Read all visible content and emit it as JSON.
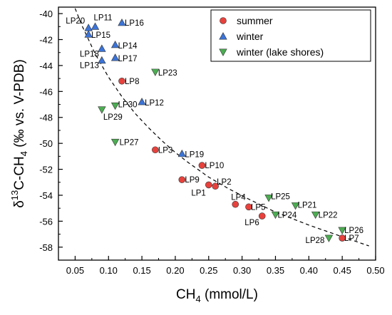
{
  "chart_data": {
    "type": "scatter",
    "title": "",
    "xlabel": "CH",
    "xlabel_sub": "4",
    "xlabel_unit": " (mmol/L)",
    "ylabel_parts": [
      "δ",
      "13",
      "C-CH",
      "4",
      " (‰ vs. V-PDB)"
    ],
    "xlim": [
      0.025,
      0.5
    ],
    "ylim": [
      -59,
      -39.5
    ],
    "xticks": [
      0.05,
      0.1,
      0.15,
      0.2,
      0.25,
      0.3,
      0.35,
      0.4,
      0.45,
      0.5
    ],
    "xtick_labels": [
      "0.05",
      "0.10",
      "0.15",
      "0.20",
      "0.25",
      "0.30",
      "0.35",
      "0.40",
      "0.45",
      "0.50"
    ],
    "yticks": [
      -58,
      -56,
      -54,
      -52,
      -50,
      -48,
      -46,
      -44,
      -42,
      -40
    ],
    "ytick_labels": [
      "-58",
      "-56",
      "-54",
      "-52",
      "-50",
      "-48",
      "-46",
      "-44",
      "-42",
      "-40"
    ],
    "grid": false,
    "legend_position": "top-right",
    "series": [
      {
        "name": "summer",
        "marker": "circle",
        "color": "#e8413c",
        "points": [
          {
            "label": "LP8",
            "x": 0.12,
            "y": -45.2
          },
          {
            "label": "LP3",
            "x": 0.17,
            "y": -50.5
          },
          {
            "label": "LP9",
            "x": 0.21,
            "y": -52.8
          },
          {
            "label": "LP10",
            "x": 0.24,
            "y": -51.7
          },
          {
            "label": "LP1",
            "x": 0.25,
            "y": -53.2
          },
          {
            "label": "LP2",
            "x": 0.26,
            "y": -53.3
          },
          {
            "label": "LP4",
            "x": 0.29,
            "y": -54.7
          },
          {
            "label": "LP5",
            "x": 0.31,
            "y": -54.9
          },
          {
            "label": "LP6",
            "x": 0.33,
            "y": -55.6
          },
          {
            "label": "LP7",
            "x": 0.45,
            "y": -57.3
          }
        ]
      },
      {
        "name": "winter",
        "marker": "triangle-up",
        "color": "#3b74d8",
        "points": [
          {
            "label": "LP20",
            "x": 0.07,
            "y": -41.1
          },
          {
            "label": "LP11",
            "x": 0.08,
            "y": -41.0
          },
          {
            "label": "LP16",
            "x": 0.12,
            "y": -40.7
          },
          {
            "label": "LP15",
            "x": 0.07,
            "y": -41.6
          },
          {
            "label": "LP18",
            "x": 0.09,
            "y": -42.7
          },
          {
            "label": "LP14",
            "x": 0.11,
            "y": -42.4
          },
          {
            "label": "LP13",
            "x": 0.09,
            "y": -43.6
          },
          {
            "label": "LP17",
            "x": 0.11,
            "y": -43.4
          },
          {
            "label": "LP12",
            "x": 0.15,
            "y": -46.8
          },
          {
            "label": "LP19",
            "x": 0.21,
            "y": -50.8
          }
        ]
      },
      {
        "name": "winter (lake shores)",
        "marker": "triangle-down",
        "color": "#4cae52",
        "points": [
          {
            "label": "LP23",
            "x": 0.17,
            "y": -44.5
          },
          {
            "label": "LP30",
            "x": 0.11,
            "y": -47.1
          },
          {
            "label": "LP29",
            "x": 0.09,
            "y": -47.4
          },
          {
            "label": "LP27",
            "x": 0.11,
            "y": -49.9
          },
          {
            "label": "LP25",
            "x": 0.34,
            "y": -54.2
          },
          {
            "label": "LP21",
            "x": 0.38,
            "y": -54.8
          },
          {
            "label": "LP24",
            "x": 0.35,
            "y": -55.5
          },
          {
            "label": "LP22",
            "x": 0.41,
            "y": -55.5
          },
          {
            "label": "LP26",
            "x": 0.45,
            "y": -56.7
          },
          {
            "label": "LP28",
            "x": 0.43,
            "y": -57.3
          }
        ]
      }
    ],
    "fit_curve": {
      "style": "dashed",
      "x": [
        0.05,
        0.06,
        0.07,
        0.08,
        0.09,
        0.1,
        0.12,
        0.14,
        0.16,
        0.18,
        0.2,
        0.22,
        0.25,
        0.28,
        0.31,
        0.35,
        0.4,
        0.45,
        0.49
      ],
      "y": [
        -39.6,
        -40.9,
        -42.0,
        -43.1,
        -44.0,
        -44.9,
        -46.4,
        -47.7,
        -48.8,
        -49.8,
        -50.7,
        -51.5,
        -52.6,
        -53.5,
        -54.3,
        -55.3,
        -56.3,
        -57.2,
        -57.9
      ]
    }
  }
}
